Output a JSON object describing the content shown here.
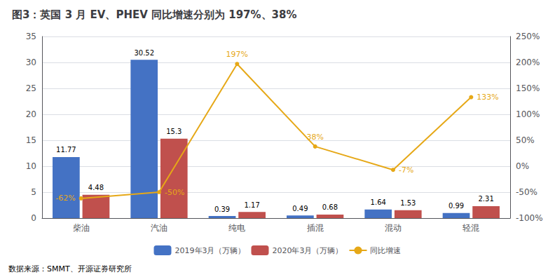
{
  "chart_data": {
    "type": "bar",
    "title": "图3：英国 3 月 EV、PHEV 同比增速分别为 197%、38%",
    "categories": [
      "柴油",
      "汽油",
      "纯电",
      "插混",
      "混动",
      "轻混"
    ],
    "series": [
      {
        "name": "2019年3月（万辆）",
        "type": "bar",
        "color": "#4472C4",
        "values": [
          11.77,
          30.52,
          0.39,
          0.49,
          1.64,
          0.99
        ],
        "data_labels": true
      },
      {
        "name": "2020年3月（万辆）",
        "type": "bar",
        "color": "#C0504D",
        "values": [
          4.48,
          15.3,
          1.17,
          0.68,
          1.53,
          2.31
        ],
        "data_labels": true
      },
      {
        "name": "同比增速",
        "type": "line",
        "axis": "y2",
        "color": "#E6A817",
        "marker": "circle",
        "values": [
          -0.62,
          -0.5,
          1.97,
          0.38,
          -0.07,
          1.33
        ],
        "value_labels": [
          "-62%",
          "-50%",
          "197%",
          "38%",
          "-7%",
          "133%"
        ],
        "data_labels": true
      }
    ],
    "ylim": [
      0,
      35
    ],
    "yticks": [
      0,
      5,
      10,
      15,
      20,
      25,
      30,
      35
    ],
    "y2lim": [
      -1.0,
      2.5
    ],
    "y2ticks": [
      {
        "value": -1.0,
        "label": "-100%"
      },
      {
        "value": -0.5,
        "label": "-50%"
      },
      {
        "value": 0.0,
        "label": "0%"
      },
      {
        "value": 0.5,
        "label": "50%"
      },
      {
        "value": 1.0,
        "label": "100%"
      },
      {
        "value": 1.5,
        "label": "150%"
      },
      {
        "value": 2.0,
        "label": "200%"
      },
      {
        "value": 2.5,
        "label": "250%"
      }
    ],
    "grid": true,
    "legend": "bottom",
    "annotations": [
      "数据来源：SMMT、开源证券研究所"
    ]
  }
}
